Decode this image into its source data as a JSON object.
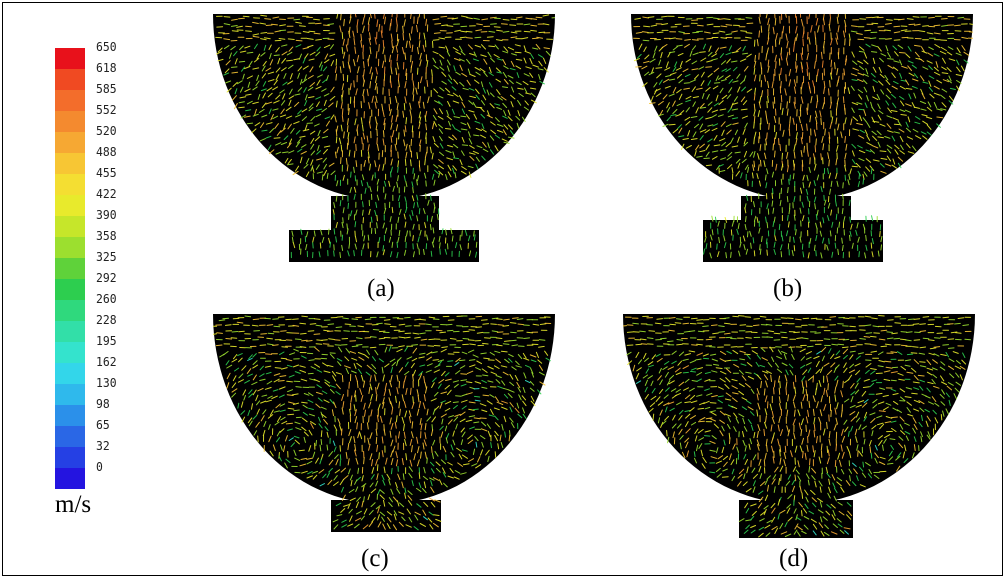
{
  "colorbar": {
    "labels": [
      "650",
      "618",
      "585",
      "552",
      "520",
      "488",
      "455",
      "422",
      "390",
      "358",
      "325",
      "292",
      "260",
      "228",
      "195",
      "162",
      "130",
      "98",
      "65",
      "32",
      "0"
    ],
    "colors": [
      "#e8111b",
      "#f04a22",
      "#f36d2b",
      "#f48a2f",
      "#f6a833",
      "#f7c634",
      "#f4de32",
      "#e8ea2c",
      "#c6e62a",
      "#9cdf2f",
      "#5fd23a",
      "#2dce4f",
      "#2fd97d",
      "#32dfa8",
      "#34e3cd",
      "#33d6ea",
      "#2fb9ec",
      "#2b90ea",
      "#2a67e6",
      "#2540e4",
      "#2414e0"
    ],
    "unit": "m/s"
  },
  "panels": [
    {
      "id": "a",
      "caption": "(a)",
      "pattern": "jet-neck"
    },
    {
      "id": "b",
      "caption": "(b)",
      "pattern": "jet-neck"
    },
    {
      "id": "c",
      "caption": "(c)",
      "pattern": "tumble"
    },
    {
      "id": "d",
      "caption": "(d)",
      "pattern": "tumble"
    }
  ]
}
